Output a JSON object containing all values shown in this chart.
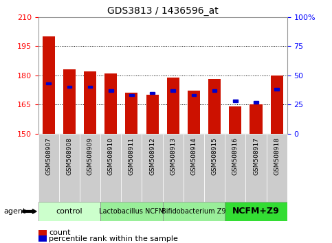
{
  "title": "GDS3813 / 1436596_at",
  "categories": [
    "GSM508907",
    "GSM508908",
    "GSM508909",
    "GSM508910",
    "GSM508911",
    "GSM508912",
    "GSM508913",
    "GSM508914",
    "GSM508915",
    "GSM508916",
    "GSM508917",
    "GSM508918"
  ],
  "count_values": [
    200,
    183,
    182,
    181,
    171,
    170,
    179,
    172,
    178,
    164,
    165,
    180
  ],
  "percentile_values": [
    43,
    40,
    40,
    37,
    33,
    35,
    37,
    33,
    37,
    28,
    27,
    38
  ],
  "ymin": 150,
  "ymax": 210,
  "yticks": [
    150,
    165,
    180,
    195,
    210
  ],
  "y2min": 0,
  "y2max": 100,
  "y2ticks": [
    0,
    25,
    50,
    75,
    100
  ],
  "y2ticklabels": [
    "0",
    "25",
    "50",
    "75",
    "100%"
  ],
  "bar_color": "#cc1100",
  "dot_color": "#0000cc",
  "agent_groups": [
    {
      "label": "control",
      "start": 0,
      "end": 3,
      "color": "#ccffcc",
      "fontsize": 8,
      "bold": false
    },
    {
      "label": "Lactobacillus NCFM",
      "start": 3,
      "end": 6,
      "color": "#99ee99",
      "fontsize": 7,
      "bold": false
    },
    {
      "label": "Bifidobacterium Z9",
      "start": 6,
      "end": 9,
      "color": "#99ee99",
      "fontsize": 7,
      "bold": false
    },
    {
      "label": "NCFM+Z9",
      "start": 9,
      "end": 12,
      "color": "#33dd33",
      "fontsize": 9,
      "bold": true
    }
  ],
  "legend_count_color": "#cc1100",
  "legend_pct_color": "#0000cc",
  "tick_bg_color": "#cccccc"
}
